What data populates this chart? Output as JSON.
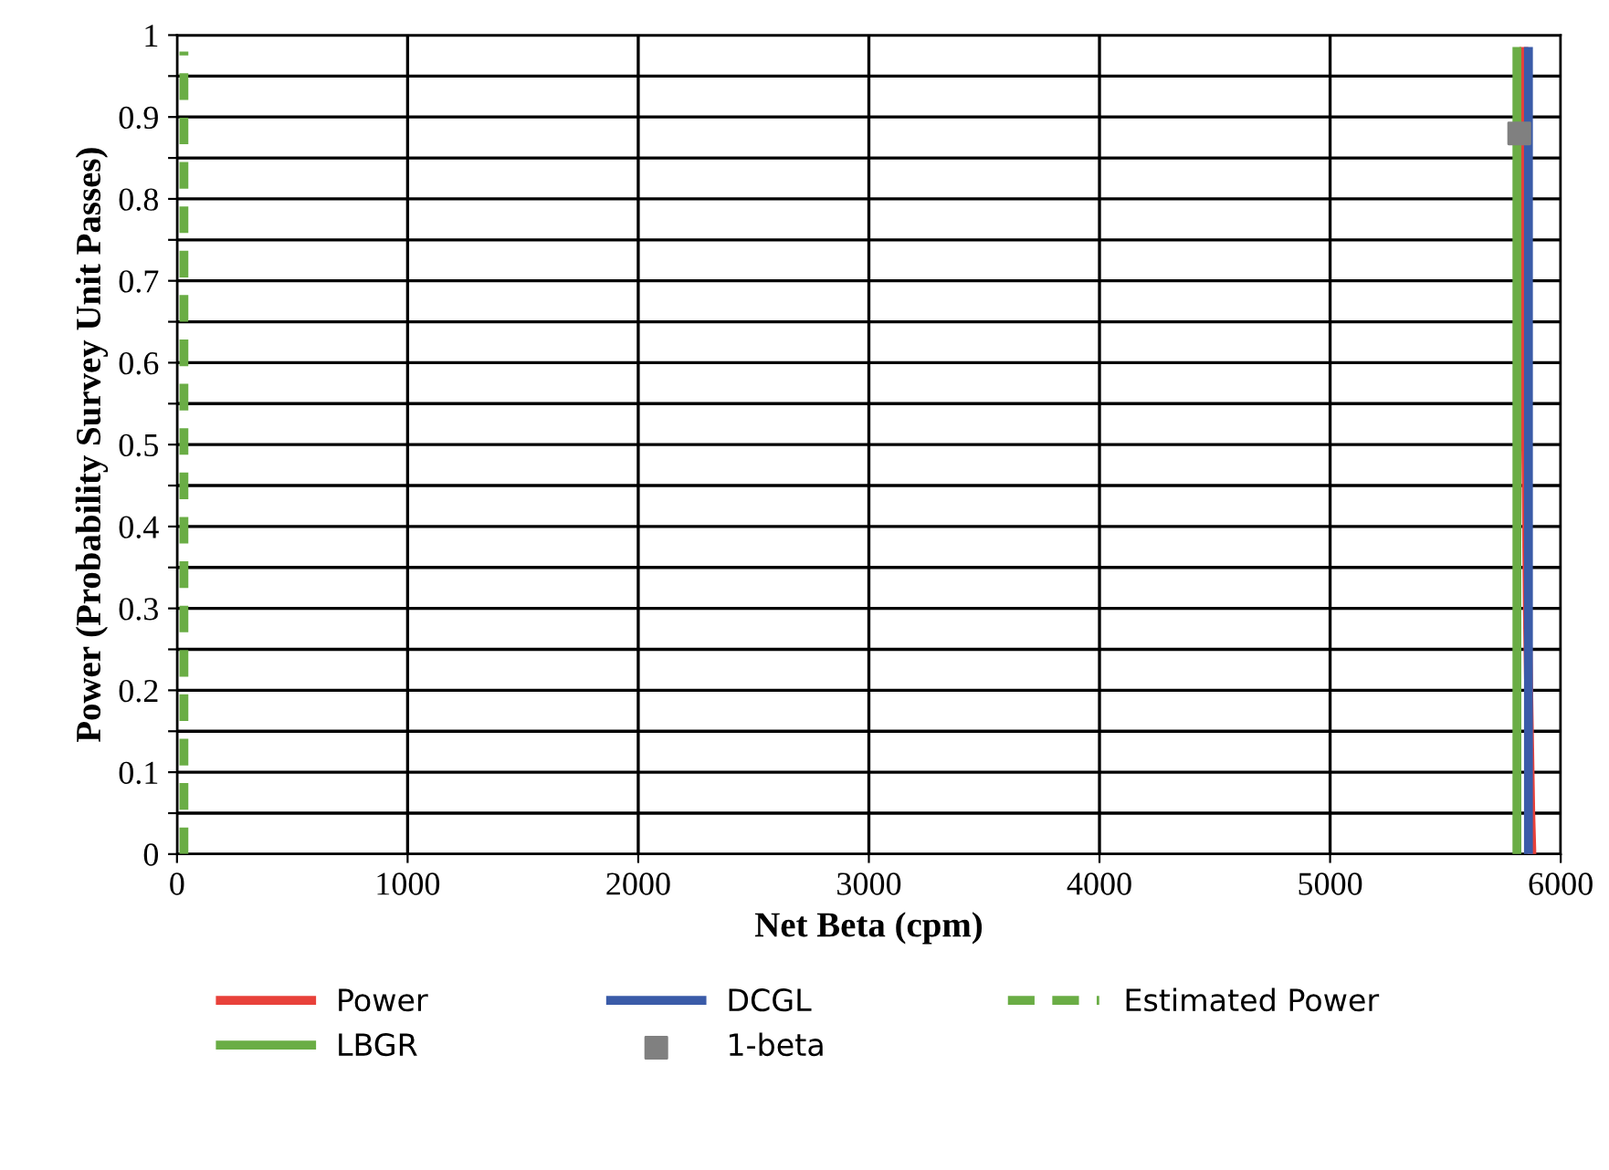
{
  "chart_data": {
    "type": "line",
    "xlabel": "Net Beta (cpm)",
    "ylabel": "Power (Probability Survey Unit Passes)",
    "xlim": [
      0,
      6000
    ],
    "xticks": [
      0,
      1000,
      2000,
      3000,
      4000,
      5000,
      6000
    ],
    "ylim": [
      0,
      1
    ],
    "yticks": [
      0,
      {
        "value": 0.05,
        "label": null
      },
      0.1,
      {
        "value": 0.15,
        "label": null
      },
      0.2,
      {
        "value": 0.25,
        "label": null
      },
      0.3,
      {
        "value": 0.35,
        "label": null
      },
      0.4,
      {
        "value": 0.45,
        "label": null
      },
      0.5,
      {
        "value": 0.55,
        "label": null
      },
      0.6,
      {
        "value": 0.65,
        "label": null
      },
      0.7,
      {
        "value": 0.75,
        "label": null
      },
      0.8,
      {
        "value": 0.85,
        "label": null
      },
      0.9,
      {
        "value": 0.95,
        "label": null
      },
      1
    ],
    "grid": true,
    "legend": "bottom",
    "series": [
      {
        "name": "Power",
        "color": "#e8413a",
        "x": [
          5875,
          5870,
          5855,
          5845,
          5840,
          5840
        ],
        "values": [
          0,
          0.05,
          0.3,
          0.6,
          0.9,
          0.98
        ]
      },
      {
        "name": "LBGR",
        "color": "#6aad45",
        "x": [
          5810,
          5810
        ],
        "values": [
          0,
          0.98
        ]
      },
      {
        "name": "DCGL",
        "color": "#3a5ba8",
        "x": [
          5860,
          5860
        ],
        "values": [
          0,
          0.98
        ]
      },
      {
        "name": "1-beta",
        "color": "#808080",
        "type": "scatter",
        "marker": "square",
        "x": [
          5820
        ],
        "values": [
          0.88
        ]
      },
      {
        "name": "Estimated Power",
        "color": "#6aad45",
        "line_style": "dashed",
        "x": [
          30,
          30
        ],
        "values": [
          0,
          0.98
        ]
      }
    ]
  }
}
